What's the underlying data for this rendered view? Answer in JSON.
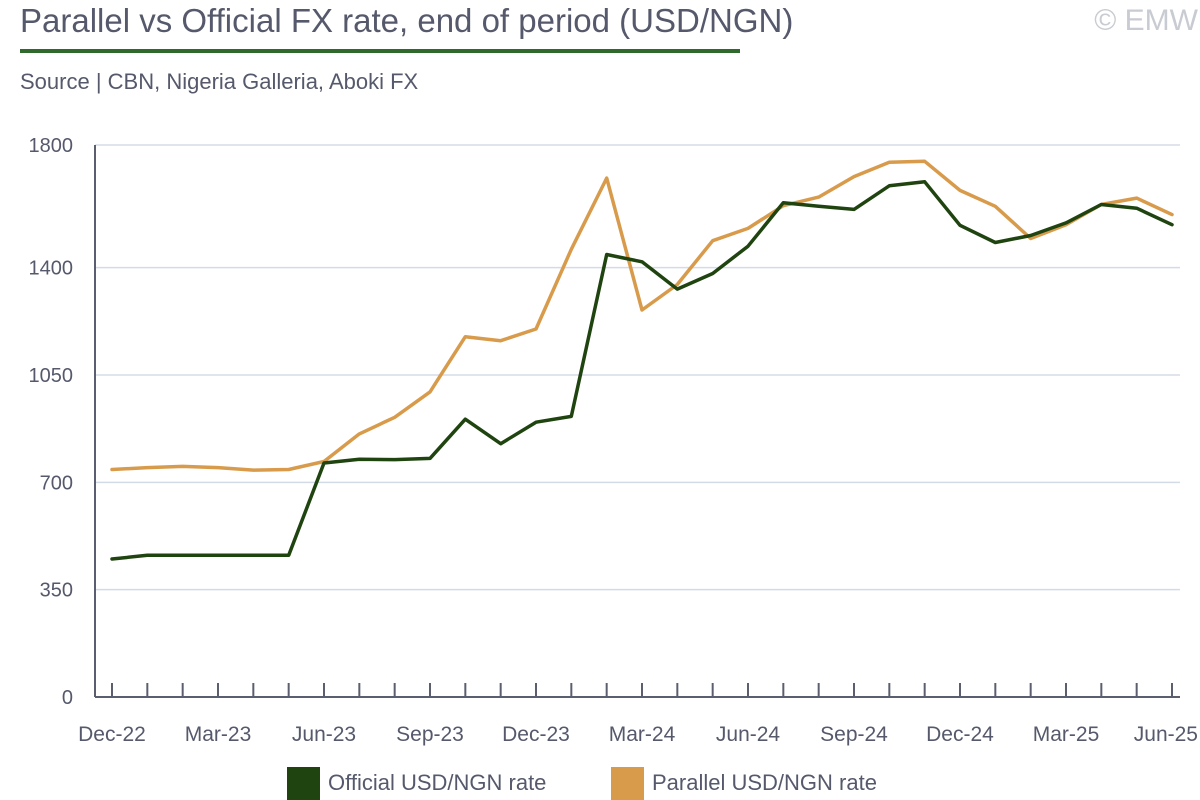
{
  "header": {
    "title": "Parallel vs Official FX rate, end of period (USD/NGN)",
    "source": "Source | CBN, Nigeria Galleria, Aboki FX",
    "copyright": "© EMW"
  },
  "colors": {
    "official": "#1f4410",
    "parallel": "#d89b4c",
    "title_rule": "#2f6a2c",
    "grid": "#d5dbe6",
    "axis": "#5a5e6e"
  },
  "legend": {
    "official": "Official USD/NGN rate",
    "parallel": "Parallel USD/NGN rate"
  },
  "chart_data": {
    "type": "line",
    "title": "Parallel vs Official FX rate, end of period (USD/NGN)",
    "xlabel": "",
    "ylabel": "",
    "ylim": [
      0,
      1800
    ],
    "yticks": [
      0,
      350,
      700,
      1050,
      1400,
      1800
    ],
    "grid": true,
    "legend_position": "bottom",
    "x": [
      "Dec-22",
      "Jan-23",
      "Feb-23",
      "Mar-23",
      "Apr-23",
      "May-23",
      "Jun-23",
      "Jul-23",
      "Aug-23",
      "Sep-23",
      "Oct-23",
      "Nov-23",
      "Dec-23",
      "Jan-24",
      "Feb-24",
      "Mar-24",
      "Apr-24",
      "May-24",
      "Jun-24",
      "Jul-24",
      "Aug-24",
      "Sep-24",
      "Oct-24",
      "Nov-24",
      "Dec-24",
      "Jan-25",
      "Feb-25",
      "Mar-25",
      "Apr-25",
      "May-25",
      "Jun-25"
    ],
    "x_tick_labels": [
      "Dec-22",
      "Mar-23",
      "Jun-23",
      "Sep-23",
      "Dec-23",
      "Mar-24",
      "Jun-24",
      "Sep-24",
      "Dec-24",
      "Mar-25",
      "Jun-25"
    ],
    "series": [
      {
        "name": "Official USD/NGN rate",
        "color": "#1f4410",
        "values": [
          450,
          462,
          462,
          462,
          462,
          462,
          763,
          775,
          774,
          778,
          906,
          826,
          896,
          915,
          1443,
          1419,
          1330,
          1381,
          1470,
          1612,
          1600,
          1590,
          1667,
          1680,
          1538,
          1482,
          1505,
          1546,
          1606,
          1594,
          1540
        ]
      },
      {
        "name": "Parallel USD/NGN rate",
        "color": "#d89b4c",
        "values": [
          742,
          748,
          752,
          748,
          740,
          742,
          768,
          858,
          912,
          995,
          1175,
          1162,
          1200,
          1460,
          1692,
          1262,
          1345,
          1488,
          1528,
          1602,
          1630,
          1697,
          1744,
          1747,
          1652,
          1600,
          1495,
          1540,
          1606,
          1627,
          1573
        ]
      }
    ]
  }
}
